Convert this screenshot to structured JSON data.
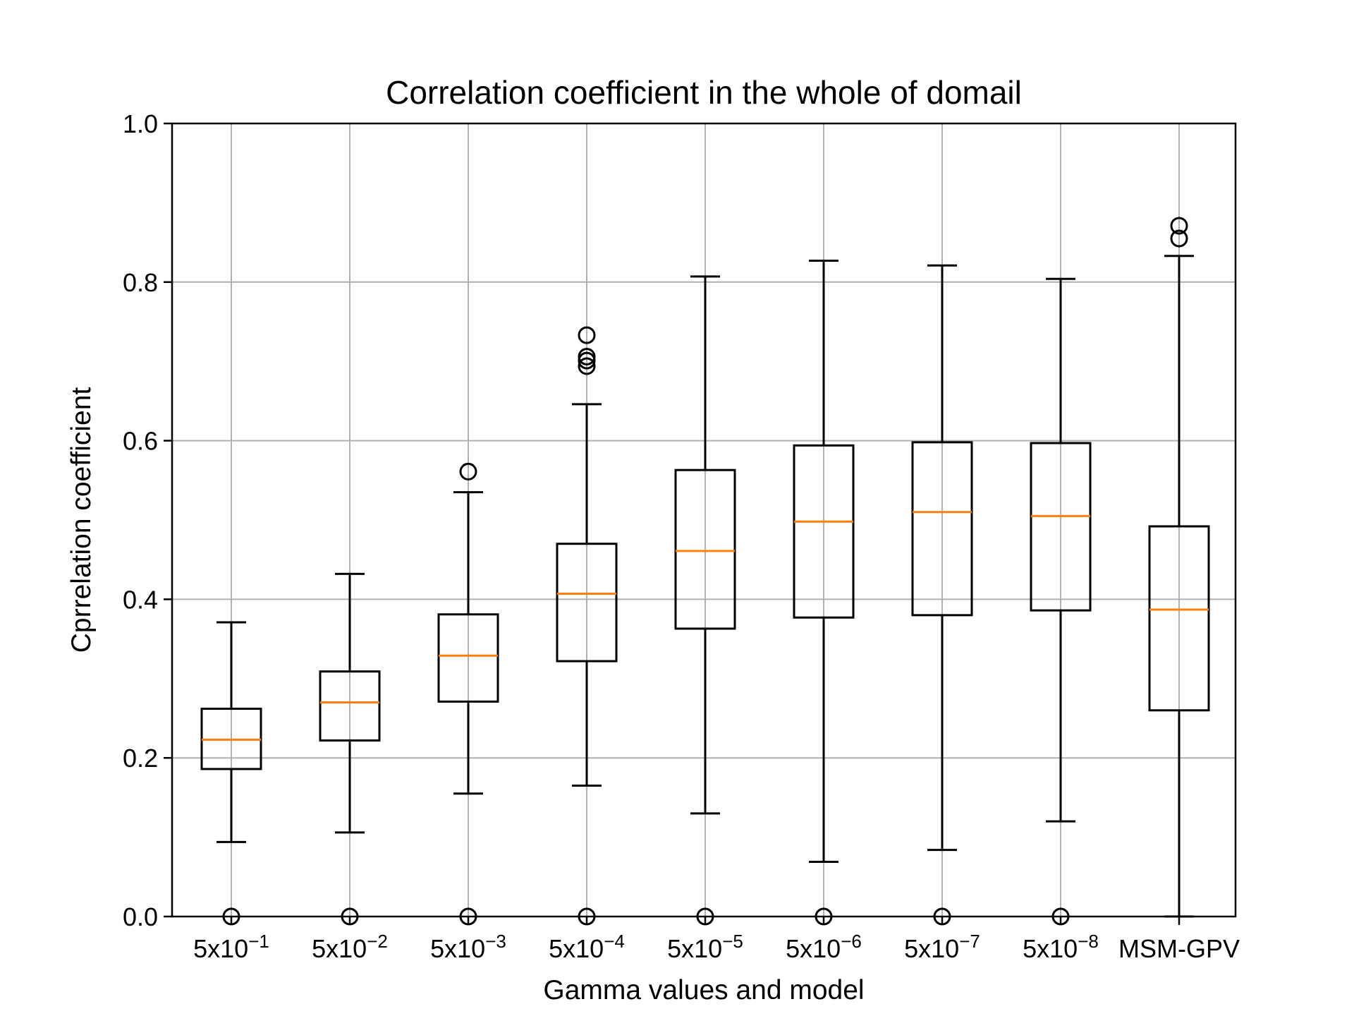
{
  "chart_data": {
    "type": "box",
    "title": "Correlation coefficient in the whole of domail",
    "xlabel": "Gamma values and model",
    "ylabel": "Cprrelation coefficient",
    "ylim": [
      0.0,
      1.0
    ],
    "yticks": [
      "0.0",
      "0.2",
      "0.4",
      "0.6",
      "0.8",
      "1.0"
    ],
    "grid": true,
    "colors": {
      "box": "#000000",
      "median": "#ff7f0e",
      "grid": "#b0b0b0"
    },
    "categories": [
      {
        "base": "5x10",
        "exp": "−1"
      },
      {
        "base": "5x10",
        "exp": "−2"
      },
      {
        "base": "5x10",
        "exp": "−3"
      },
      {
        "base": "5x10",
        "exp": "−4"
      },
      {
        "base": "5x10",
        "exp": "−5"
      },
      {
        "base": "5x10",
        "exp": "−6"
      },
      {
        "base": "5x10",
        "exp": "−7"
      },
      {
        "base": "5x10",
        "exp": "−8"
      },
      {
        "base": "MSM-GPV",
        "exp": ""
      }
    ],
    "boxes": [
      {
        "whisker_low": 0.094,
        "q1": 0.186,
        "median": 0.223,
        "q3": 0.262,
        "whisker_high": 0.371,
        "outliers": [
          0.0
        ]
      },
      {
        "whisker_low": 0.106,
        "q1": 0.222,
        "median": 0.27,
        "q3": 0.309,
        "whisker_high": 0.432,
        "outliers": [
          0.0
        ]
      },
      {
        "whisker_low": 0.155,
        "q1": 0.271,
        "median": 0.329,
        "q3": 0.381,
        "whisker_high": 0.535,
        "outliers": [
          0.0,
          0.561
        ]
      },
      {
        "whisker_low": 0.165,
        "q1": 0.322,
        "median": 0.407,
        "q3": 0.47,
        "whisker_high": 0.646,
        "outliers": [
          0.0,
          0.694,
          0.701,
          0.706,
          0.733
        ]
      },
      {
        "whisker_low": 0.13,
        "q1": 0.363,
        "median": 0.461,
        "q3": 0.563,
        "whisker_high": 0.807,
        "outliers": [
          0.0
        ]
      },
      {
        "whisker_low": 0.069,
        "q1": 0.377,
        "median": 0.498,
        "q3": 0.594,
        "whisker_high": 0.827,
        "outliers": [
          0.0
        ]
      },
      {
        "whisker_low": 0.084,
        "q1": 0.38,
        "median": 0.51,
        "q3": 0.598,
        "whisker_high": 0.821,
        "outliers": [
          0.0
        ]
      },
      {
        "whisker_low": 0.12,
        "q1": 0.386,
        "median": 0.505,
        "q3": 0.597,
        "whisker_high": 0.804,
        "outliers": [
          0.0
        ]
      },
      {
        "whisker_low": 0.0,
        "q1": 0.26,
        "median": 0.387,
        "q3": 0.492,
        "whisker_high": 0.833,
        "outliers": [
          0.855,
          0.871
        ]
      }
    ]
  }
}
